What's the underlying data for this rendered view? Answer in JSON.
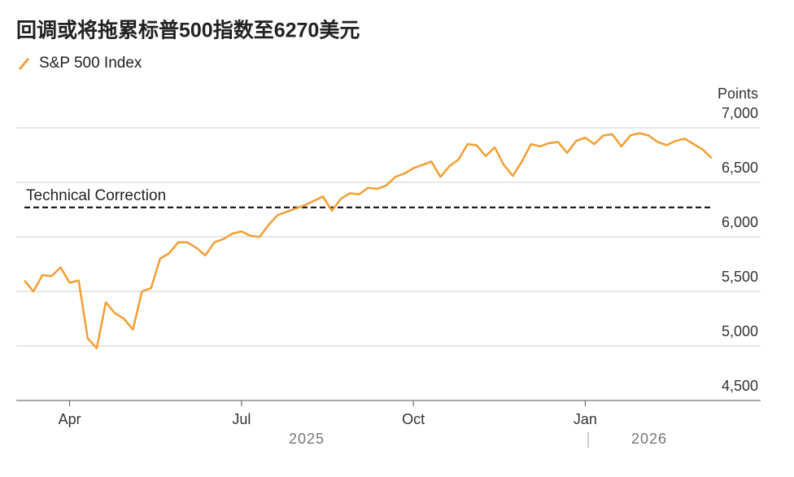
{
  "chart_data": {
    "type": "line",
    "title": "回调或将拖累标普500指数至6270美元",
    "y_axis_label": "Points",
    "categories": [
      null,
      null,
      null,
      null,
      null,
      "Apr",
      null,
      null,
      null,
      null,
      null,
      null,
      null,
      null,
      null,
      null,
      null,
      null,
      null,
      null,
      null,
      null,
      null,
      null,
      "Jul",
      null,
      null,
      null,
      null,
      null,
      null,
      null,
      null,
      null,
      null,
      null,
      null,
      null,
      null,
      null,
      null,
      null,
      null,
      "Oct",
      null,
      null,
      null,
      null,
      null,
      null,
      null,
      null,
      null,
      null,
      null,
      null,
      null,
      null,
      null,
      null,
      null,
      null,
      "Jan",
      null,
      null,
      null,
      null,
      null,
      null,
      null,
      null,
      null,
      null,
      null,
      null,
      null,
      null
    ],
    "year_labels": [
      "2025",
      "2026"
    ],
    "series": [
      {
        "name": "S&P 500 Index",
        "color": "#f2a13a",
        "values": [
          5600,
          5500,
          5650,
          5640,
          5720,
          5580,
          5600,
          5070,
          4980,
          5400,
          5300,
          5250,
          5150,
          5500,
          5530,
          5800,
          5850,
          5950,
          5950,
          5900,
          5830,
          5950,
          5980,
          6030,
          6050,
          6010,
          6000,
          6110,
          6200,
          6230,
          6260,
          6290,
          6330,
          6370,
          6240,
          6350,
          6400,
          6390,
          6450,
          6440,
          6470,
          6550,
          6580,
          6630,
          6660,
          6690,
          6550,
          6650,
          6710,
          6850,
          6840,
          6740,
          6820,
          6660,
          6560,
          6690,
          6850,
          6830,
          6860,
          6870,
          6770,
          6880,
          6910,
          6850,
          6930,
          6940,
          6830,
          6930,
          6950,
          6930,
          6870,
          6840,
          6880,
          6900,
          6850,
          6800,
          6720
        ]
      }
    ],
    "reference_line": {
      "value": 6270,
      "label": "Technical Correction"
    },
    "ylim": [
      4500,
      7000
    ],
    "yticks": [
      {
        "value": 4500,
        "label": "4,500"
      },
      {
        "value": 5000,
        "label": "5,000"
      },
      {
        "value": 5500,
        "label": "5,500"
      },
      {
        "value": 6000,
        "label": "6,000"
      },
      {
        "value": 6500,
        "label": "6,500"
      },
      {
        "value": 7000,
        "label": "7,000"
      }
    ],
    "grid": true
  }
}
